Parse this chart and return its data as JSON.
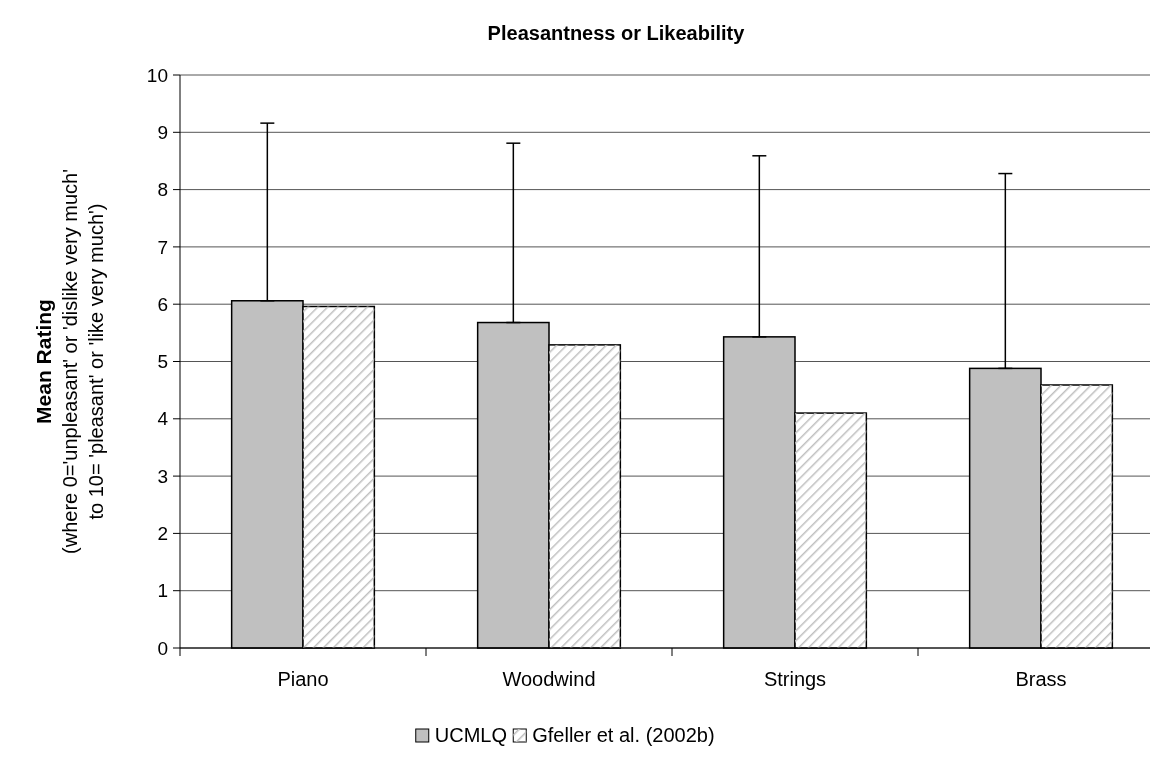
{
  "chart_data": {
    "type": "bar",
    "title": "Pleasantness or Likeability",
    "ylabel": "Mean Rating\n(where 0='unpleasant' or 'dislike very much'\nto 10= 'pleasant' or 'like very much')",
    "categories": [
      "Piano",
      "Woodwind",
      "Strings",
      "Brass"
    ],
    "series": [
      {
        "name": "UCMLQ",
        "color": "#c0c0c0",
        "values": [
          6.06,
          5.68,
          5.43,
          4.88
        ],
        "errors": [
          [
            6.06,
            9.16
          ],
          [
            5.68,
            8.81
          ],
          [
            5.43,
            8.59
          ],
          [
            4.88,
            8.28
          ]
        ]
      },
      {
        "name": "Gfeller et al. (2002b)",
        "color": "#c0c0c0",
        "values": [
          5.96,
          5.29,
          4.1,
          4.59
        ]
      }
    ],
    "ylim": [
      0,
      10
    ],
    "yticks": [
      0,
      1,
      2,
      3,
      4,
      5,
      6,
      7,
      8,
      9,
      10
    ],
    "grid": "y",
    "legend": "bottom"
  }
}
